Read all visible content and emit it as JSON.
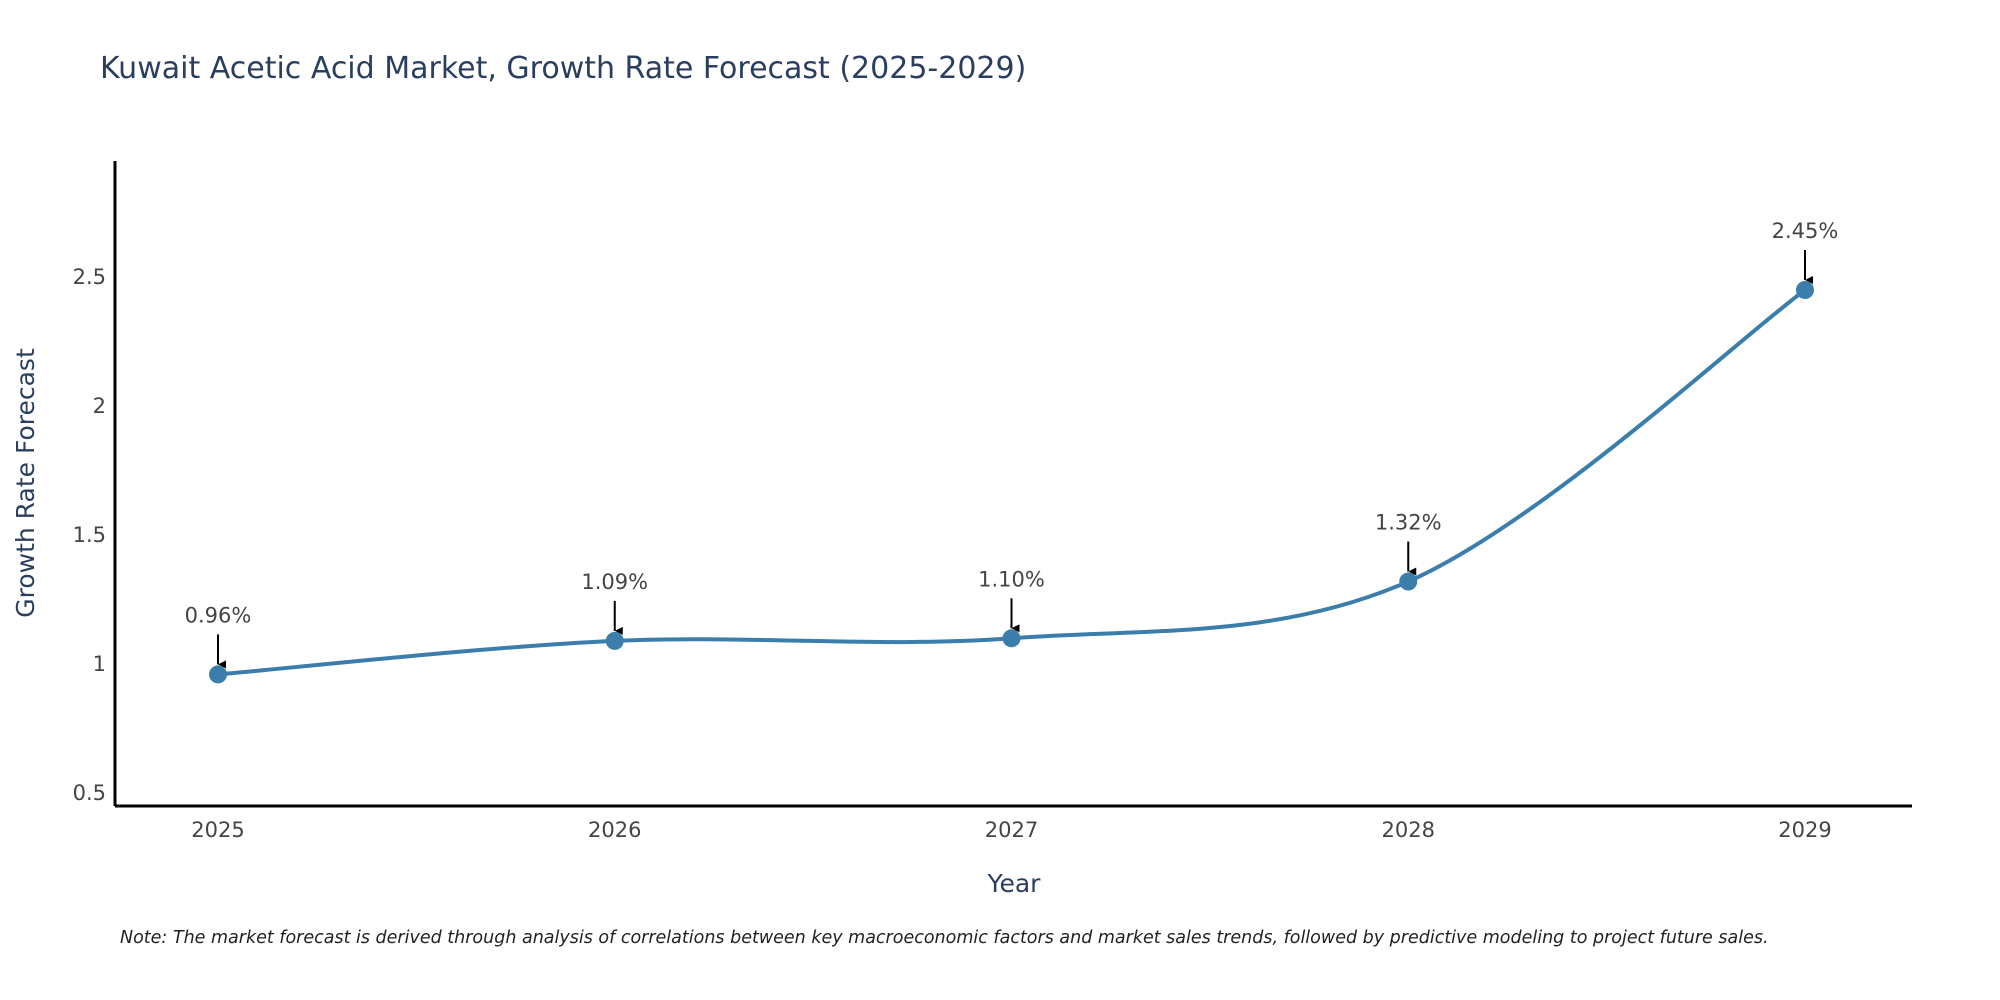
{
  "chart_data": {
    "type": "line",
    "title": "Kuwait Acetic Acid Market, Growth Rate Forecast (2025-2029)",
    "xlabel": "Year",
    "ylabel": "Growth Rate Forecast",
    "categories": [
      "2025",
      "2026",
      "2027",
      "2028",
      "2029"
    ],
    "series": [
      {
        "name": "Growth Rate Forecast",
        "values": [
          0.96,
          1.09,
          1.1,
          1.32,
          2.45
        ],
        "labels": [
          "0.96%",
          "1.09%",
          "1.10%",
          "1.32%",
          "2.45%"
        ],
        "color": "#3b7dab"
      }
    ],
    "ylim": [
      0.45,
      2.95
    ],
    "yticks": [
      0.5,
      1,
      1.5,
      2,
      2.5
    ],
    "ytick_labels": [
      "0.5",
      "1",
      "1.5",
      "2",
      "2.5"
    ],
    "grid": false,
    "line_shape": "spline"
  },
  "note": "Note: The market forecast is derived through analysis of correlations between key macroeconomic factors and market sales trends, followed by predictive modeling to project future sales."
}
